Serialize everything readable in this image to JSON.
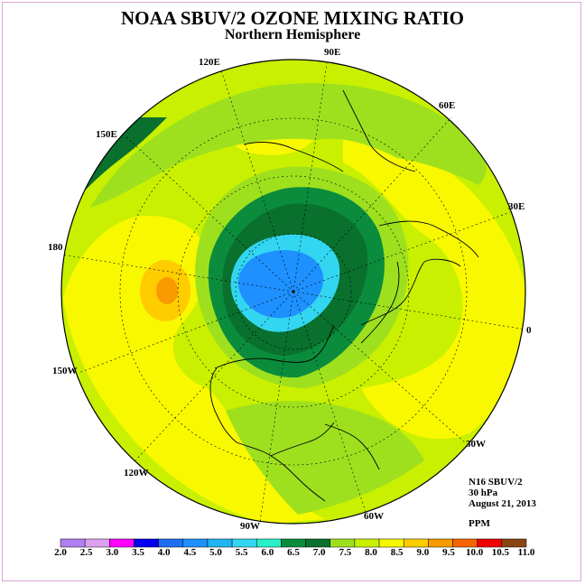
{
  "header": {
    "title": "NOAA SBUV/2 OZONE MIXING RATIO",
    "subtitle": "Northern Hemisphere"
  },
  "longitude_labels": [
    "90E",
    "60E",
    "30E",
    "0",
    "30W",
    "60W",
    "90W",
    "120W",
    "150W",
    "180",
    "150E",
    "120E"
  ],
  "info": {
    "instrument": "N16 SBUV/2",
    "level": "30 hPa",
    "date": "August 21, 2013",
    "units": "PPM"
  },
  "colorbar": {
    "labels": [
      "2.0",
      "2.5",
      "3.0",
      "3.5",
      "4.0",
      "4.5",
      "5.0",
      "5.5",
      "6.0",
      "6.5",
      "7.0",
      "7.5",
      "8.0",
      "8.5",
      "9.0",
      "9.5",
      "10.0",
      "10.5",
      "11.0"
    ],
    "colors": [
      "#b07ef0",
      "#dda0f0",
      "#ff00ff",
      "#0000ee",
      "#1e6ff0",
      "#1e90ff",
      "#20b4f0",
      "#33d6f0",
      "#2af0c8",
      "#0a8c3c",
      "#09702e",
      "#9ee01e",
      "#c8f000",
      "#f8f800",
      "#ffcc00",
      "#f89a00",
      "#f86400",
      "#f00000",
      "#8b4513"
    ]
  },
  "map_colors": {
    "background": "#c8f000",
    "ocean_band": "#f8f800",
    "mid_green": "#9ee01e",
    "dark_green": "#0a8c3c",
    "deep_green": "#09702e",
    "cyan": "#33d6f0",
    "blue": "#1e90ff",
    "orange": "#ffcc00",
    "dark_orange": "#f89a00"
  }
}
